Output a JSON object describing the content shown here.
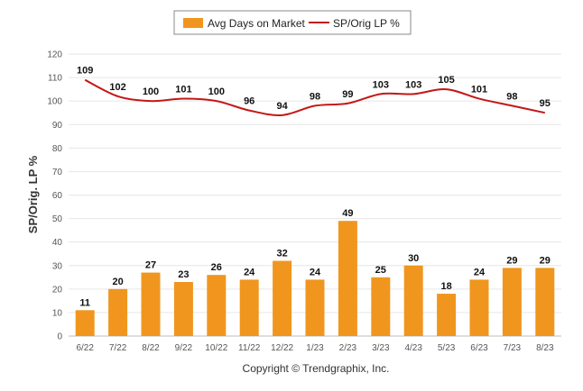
{
  "chart_data": {
    "type": "bar",
    "categories": [
      "6/22",
      "7/22",
      "8/22",
      "9/22",
      "10/22",
      "11/22",
      "12/22",
      "1/23",
      "2/23",
      "3/23",
      "4/23",
      "5/23",
      "6/23",
      "7/23",
      "8/23"
    ],
    "series": [
      {
        "name": "Avg Days on Market",
        "type": "bar",
        "color": "#f0961e",
        "values": [
          11,
          20,
          27,
          23,
          26,
          24,
          32,
          24,
          49,
          25,
          30,
          18,
          24,
          29,
          29
        ]
      },
      {
        "name": "SP/Orig LP %",
        "type": "line",
        "color": "#c41717",
        "values": [
          109,
          102,
          100,
          101,
          100,
          96,
          94,
          98,
          99,
          103,
          103,
          105,
          101,
          98,
          95
        ]
      }
    ],
    "ylabel": "SP/Orig. LP %",
    "xlabel": "",
    "ylim": [
      0,
      120
    ],
    "yticks": [
      0,
      10,
      20,
      30,
      40,
      50,
      60,
      70,
      80,
      90,
      100,
      110,
      120
    ],
    "grid": true,
    "legend_position": "top-center"
  },
  "footer": "Copyright © Trendgraphix, Inc."
}
